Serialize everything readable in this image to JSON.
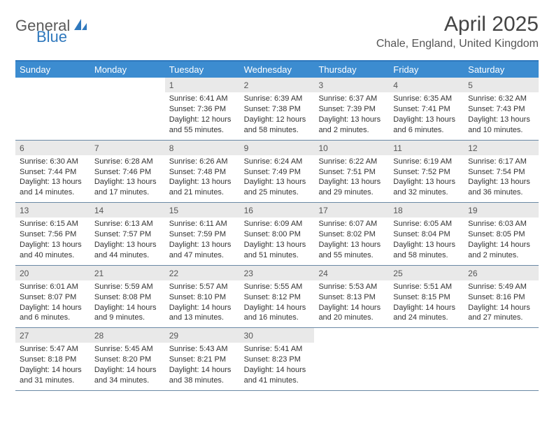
{
  "brand": {
    "part1": "General",
    "part2": "Blue"
  },
  "title": "April 2025",
  "location": "Chale, England, United Kingdom",
  "colors": {
    "header_bar": "#3c8cd0",
    "header_top_border": "#2f78bd",
    "daynum_bg": "#e9e9e9",
    "week_divider": "#6a89a5",
    "text": "#333333",
    "logo_gray": "#5a5a5a",
    "logo_blue": "#2f78bd"
  },
  "weekdays": [
    "Sunday",
    "Monday",
    "Tuesday",
    "Wednesday",
    "Thursday",
    "Friday",
    "Saturday"
  ],
  "weeks": [
    [
      null,
      null,
      {
        "n": "1",
        "sr": "Sunrise: 6:41 AM",
        "ss": "Sunset: 7:36 PM",
        "d1": "Daylight: 12 hours",
        "d2": "and 55 minutes."
      },
      {
        "n": "2",
        "sr": "Sunrise: 6:39 AM",
        "ss": "Sunset: 7:38 PM",
        "d1": "Daylight: 12 hours",
        "d2": "and 58 minutes."
      },
      {
        "n": "3",
        "sr": "Sunrise: 6:37 AM",
        "ss": "Sunset: 7:39 PM",
        "d1": "Daylight: 13 hours",
        "d2": "and 2 minutes."
      },
      {
        "n": "4",
        "sr": "Sunrise: 6:35 AM",
        "ss": "Sunset: 7:41 PM",
        "d1": "Daylight: 13 hours",
        "d2": "and 6 minutes."
      },
      {
        "n": "5",
        "sr": "Sunrise: 6:32 AM",
        "ss": "Sunset: 7:43 PM",
        "d1": "Daylight: 13 hours",
        "d2": "and 10 minutes."
      }
    ],
    [
      {
        "n": "6",
        "sr": "Sunrise: 6:30 AM",
        "ss": "Sunset: 7:44 PM",
        "d1": "Daylight: 13 hours",
        "d2": "and 14 minutes."
      },
      {
        "n": "7",
        "sr": "Sunrise: 6:28 AM",
        "ss": "Sunset: 7:46 PM",
        "d1": "Daylight: 13 hours",
        "d2": "and 17 minutes."
      },
      {
        "n": "8",
        "sr": "Sunrise: 6:26 AM",
        "ss": "Sunset: 7:48 PM",
        "d1": "Daylight: 13 hours",
        "d2": "and 21 minutes."
      },
      {
        "n": "9",
        "sr": "Sunrise: 6:24 AM",
        "ss": "Sunset: 7:49 PM",
        "d1": "Daylight: 13 hours",
        "d2": "and 25 minutes."
      },
      {
        "n": "10",
        "sr": "Sunrise: 6:22 AM",
        "ss": "Sunset: 7:51 PM",
        "d1": "Daylight: 13 hours",
        "d2": "and 29 minutes."
      },
      {
        "n": "11",
        "sr": "Sunrise: 6:19 AM",
        "ss": "Sunset: 7:52 PM",
        "d1": "Daylight: 13 hours",
        "d2": "and 32 minutes."
      },
      {
        "n": "12",
        "sr": "Sunrise: 6:17 AM",
        "ss": "Sunset: 7:54 PM",
        "d1": "Daylight: 13 hours",
        "d2": "and 36 minutes."
      }
    ],
    [
      {
        "n": "13",
        "sr": "Sunrise: 6:15 AM",
        "ss": "Sunset: 7:56 PM",
        "d1": "Daylight: 13 hours",
        "d2": "and 40 minutes."
      },
      {
        "n": "14",
        "sr": "Sunrise: 6:13 AM",
        "ss": "Sunset: 7:57 PM",
        "d1": "Daylight: 13 hours",
        "d2": "and 44 minutes."
      },
      {
        "n": "15",
        "sr": "Sunrise: 6:11 AM",
        "ss": "Sunset: 7:59 PM",
        "d1": "Daylight: 13 hours",
        "d2": "and 47 minutes."
      },
      {
        "n": "16",
        "sr": "Sunrise: 6:09 AM",
        "ss": "Sunset: 8:00 PM",
        "d1": "Daylight: 13 hours",
        "d2": "and 51 minutes."
      },
      {
        "n": "17",
        "sr": "Sunrise: 6:07 AM",
        "ss": "Sunset: 8:02 PM",
        "d1": "Daylight: 13 hours",
        "d2": "and 55 minutes."
      },
      {
        "n": "18",
        "sr": "Sunrise: 6:05 AM",
        "ss": "Sunset: 8:04 PM",
        "d1": "Daylight: 13 hours",
        "d2": "and 58 minutes."
      },
      {
        "n": "19",
        "sr": "Sunrise: 6:03 AM",
        "ss": "Sunset: 8:05 PM",
        "d1": "Daylight: 14 hours",
        "d2": "and 2 minutes."
      }
    ],
    [
      {
        "n": "20",
        "sr": "Sunrise: 6:01 AM",
        "ss": "Sunset: 8:07 PM",
        "d1": "Daylight: 14 hours",
        "d2": "and 6 minutes."
      },
      {
        "n": "21",
        "sr": "Sunrise: 5:59 AM",
        "ss": "Sunset: 8:08 PM",
        "d1": "Daylight: 14 hours",
        "d2": "and 9 minutes."
      },
      {
        "n": "22",
        "sr": "Sunrise: 5:57 AM",
        "ss": "Sunset: 8:10 PM",
        "d1": "Daylight: 14 hours",
        "d2": "and 13 minutes."
      },
      {
        "n": "23",
        "sr": "Sunrise: 5:55 AM",
        "ss": "Sunset: 8:12 PM",
        "d1": "Daylight: 14 hours",
        "d2": "and 16 minutes."
      },
      {
        "n": "24",
        "sr": "Sunrise: 5:53 AM",
        "ss": "Sunset: 8:13 PM",
        "d1": "Daylight: 14 hours",
        "d2": "and 20 minutes."
      },
      {
        "n": "25",
        "sr": "Sunrise: 5:51 AM",
        "ss": "Sunset: 8:15 PM",
        "d1": "Daylight: 14 hours",
        "d2": "and 24 minutes."
      },
      {
        "n": "26",
        "sr": "Sunrise: 5:49 AM",
        "ss": "Sunset: 8:16 PM",
        "d1": "Daylight: 14 hours",
        "d2": "and 27 minutes."
      }
    ],
    [
      {
        "n": "27",
        "sr": "Sunrise: 5:47 AM",
        "ss": "Sunset: 8:18 PM",
        "d1": "Daylight: 14 hours",
        "d2": "and 31 minutes."
      },
      {
        "n": "28",
        "sr": "Sunrise: 5:45 AM",
        "ss": "Sunset: 8:20 PM",
        "d1": "Daylight: 14 hours",
        "d2": "and 34 minutes."
      },
      {
        "n": "29",
        "sr": "Sunrise: 5:43 AM",
        "ss": "Sunset: 8:21 PM",
        "d1": "Daylight: 14 hours",
        "d2": "and 38 minutes."
      },
      {
        "n": "30",
        "sr": "Sunrise: 5:41 AM",
        "ss": "Sunset: 8:23 PM",
        "d1": "Daylight: 14 hours",
        "d2": "and 41 minutes."
      },
      null,
      null,
      null
    ]
  ]
}
